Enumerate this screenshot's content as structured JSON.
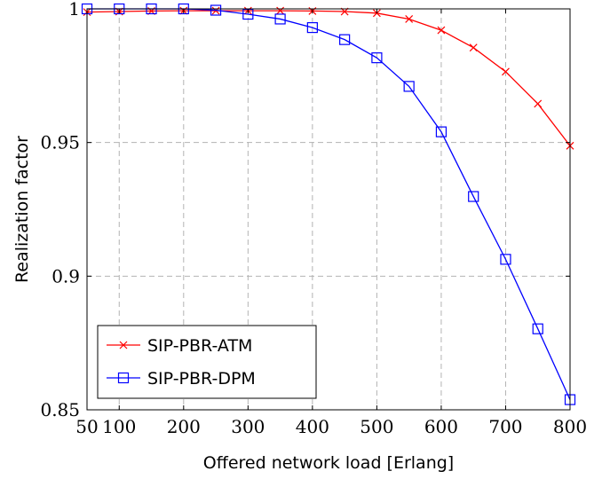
{
  "chart_data": {
    "type": "line",
    "xlabel": "Offered network load [Erlang]",
    "ylabel": "Realization factor",
    "xlim": [
      50,
      800
    ],
    "ylim": [
      0.85,
      1.0
    ],
    "x_ticks": [
      50,
      100,
      200,
      300,
      400,
      500,
      600,
      700,
      800
    ],
    "x_tick_labels": [
      "50",
      "100",
      "200",
      "300",
      "400",
      "500",
      "600",
      "700",
      "800"
    ],
    "y_ticks": [
      0.85,
      0.9,
      0.95,
      1.0
    ],
    "y_tick_labels": [
      "0.85",
      "0.9",
      "0.95",
      "1"
    ],
    "grid": true,
    "legend_position": "bottom-left",
    "x": [
      50,
      100,
      150,
      200,
      250,
      300,
      350,
      400,
      450,
      500,
      550,
      600,
      650,
      700,
      750,
      800
    ],
    "series": [
      {
        "name": "SIP-PBR-ATM",
        "color": "#ff0000",
        "marker": "x",
        "values": [
          0.9988,
          0.999,
          0.9992,
          0.9993,
          0.9993,
          0.9993,
          0.9993,
          0.9992,
          0.999,
          0.9984,
          0.9962,
          0.992,
          0.9855,
          0.9765,
          0.9645,
          0.9488
        ]
      },
      {
        "name": "SIP-PBR-DPM",
        "color": "#0000ff",
        "marker": "square",
        "values": [
          1.0,
          1.0,
          1.0,
          1.0,
          0.9995,
          0.998,
          0.9962,
          0.993,
          0.9885,
          0.9817,
          0.971,
          0.954,
          0.9298,
          0.9063,
          0.8803,
          0.8538
        ]
      }
    ]
  }
}
